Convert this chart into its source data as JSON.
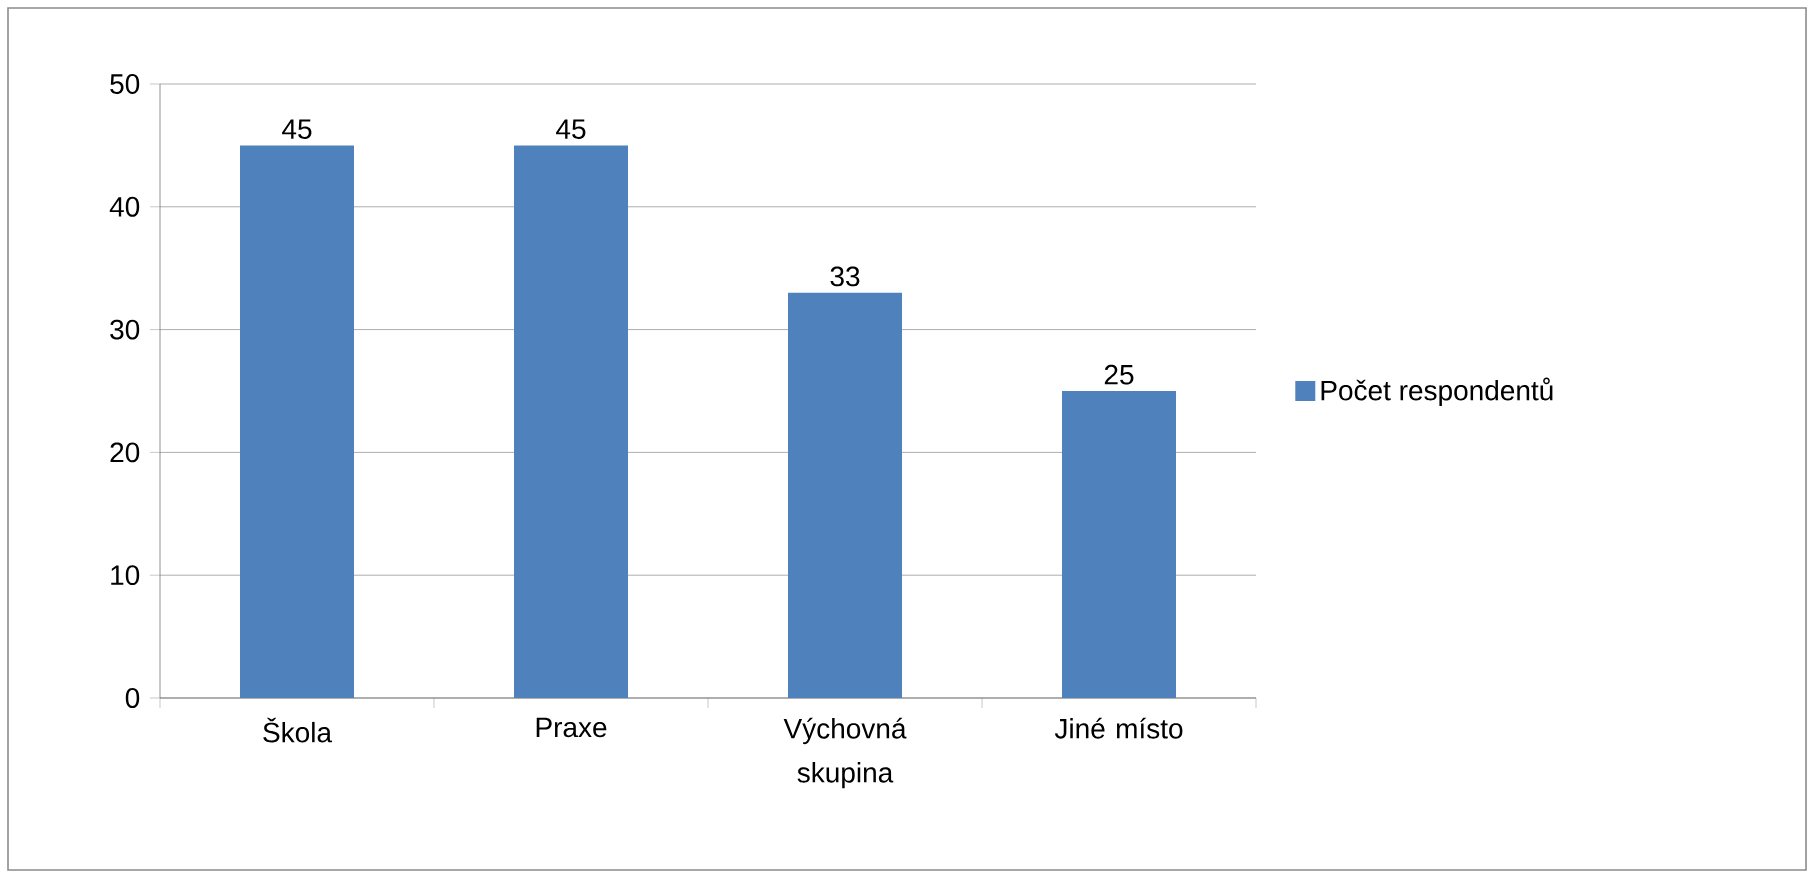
{
  "chart_data": {
    "type": "bar",
    "categories": [
      "Škola",
      "Praxe",
      "Výchovná skupina",
      "Jiné místo"
    ],
    "series": [
      {
        "name": "Počet respondentů",
        "color": "#4f81bd",
        "values": [
          45,
          45,
          33,
          25
        ]
      }
    ],
    "ylim": [
      0,
      50
    ],
    "yticks": [
      0,
      10,
      20,
      30,
      40,
      50
    ],
    "grid": "y",
    "legend": "right",
    "data_labels": true
  }
}
